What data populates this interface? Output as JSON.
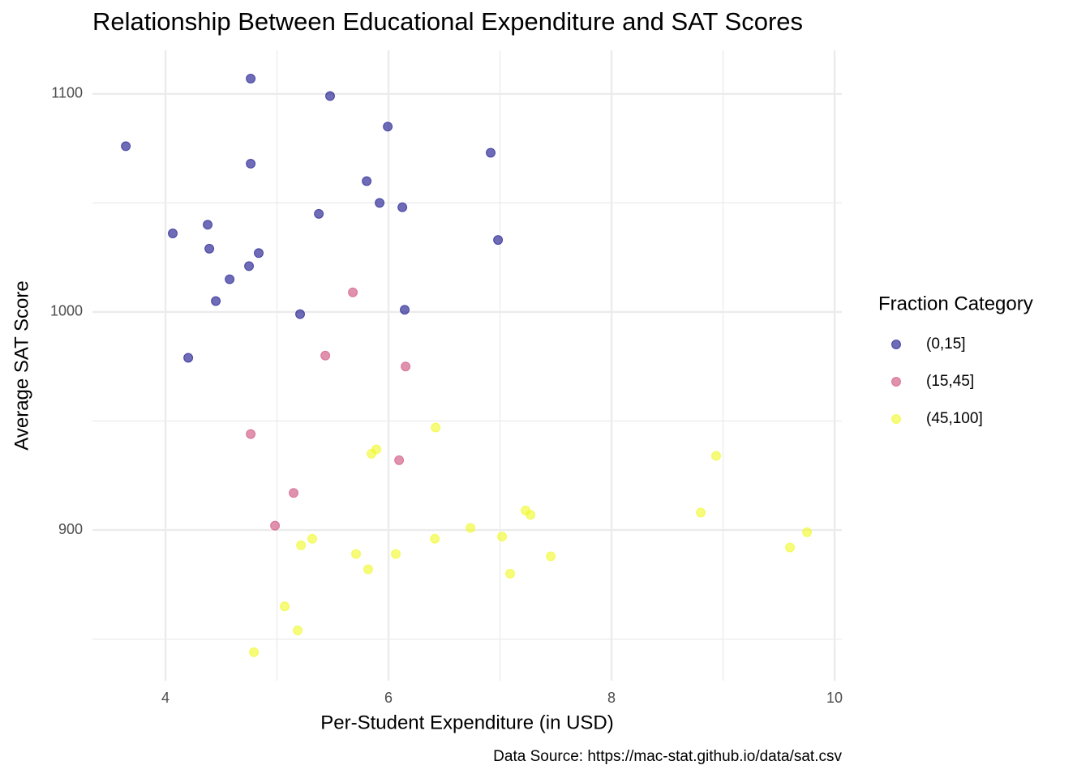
{
  "chart_data": {
    "type": "scatter",
    "title": "Relationship Between Educational Expenditure and SAT Scores",
    "x_label": "Per-Student Expenditure (in USD)",
    "y_label": "Average SAT Score",
    "caption": "Data Source: https://mac-stat.github.io/data/sat.csv",
    "legend_title": "Fraction Category",
    "legend_position": "right",
    "grid": true,
    "alpha": 0.6,
    "xlim": [
      3.345,
      10.065
    ],
    "ylim": [
      830.9,
      1120
    ],
    "xticks": [
      4,
      6,
      8,
      10
    ],
    "yticks": [
      900,
      1000,
      1100
    ],
    "x_minor_grid": [
      5,
      7,
      9
    ],
    "y_minor_grid": [
      850,
      950,
      1050
    ],
    "series": [
      {
        "name": "(0,15]",
        "color": "#0d0887",
        "x": [
          4.764,
          5.476,
          5.993,
          3.644,
          6.916,
          4.764,
          5.804,
          5.92,
          6.124,
          5.375,
          4.378,
          4.065,
          6.982,
          4.393,
          4.836,
          4.749,
          4.575,
          4.451,
          5.207,
          6.145,
          4.204
        ],
        "values": [
          1107,
          1099,
          1085,
          1076,
          1073,
          1068,
          1060,
          1050,
          1048,
          1045,
          1040,
          1036,
          1033,
          1029,
          1027,
          1021,
          1015,
          1005,
          999,
          1001,
          979
        ]
      },
      {
        "name": "(15,45]",
        "color": "#cc4778",
        "x": [
          5.68,
          5.433,
          6.153,
          4.764,
          6.095,
          5.149,
          4.982
        ],
        "values": [
          1009,
          980,
          975,
          944,
          932,
          917,
          902
        ]
      },
      {
        "name": "(45,100]",
        "color": "#f0f921",
        "x": [
          6.422,
          5.891,
          5.847,
          8.938,
          7.229,
          7.273,
          8.8,
          6.735,
          7.018,
          6.415,
          5.316,
          5.215,
          9.753,
          9.6,
          5.709,
          6.065,
          7.455,
          5.818,
          7.091,
          5.069,
          5.185,
          4.793
        ],
        "values": [
          947,
          937,
          935,
          934,
          909,
          907,
          908,
          901,
          897,
          896,
          896,
          893,
          899,
          892,
          889,
          889,
          888,
          882,
          880,
          865,
          854,
          844
        ]
      }
    ]
  }
}
